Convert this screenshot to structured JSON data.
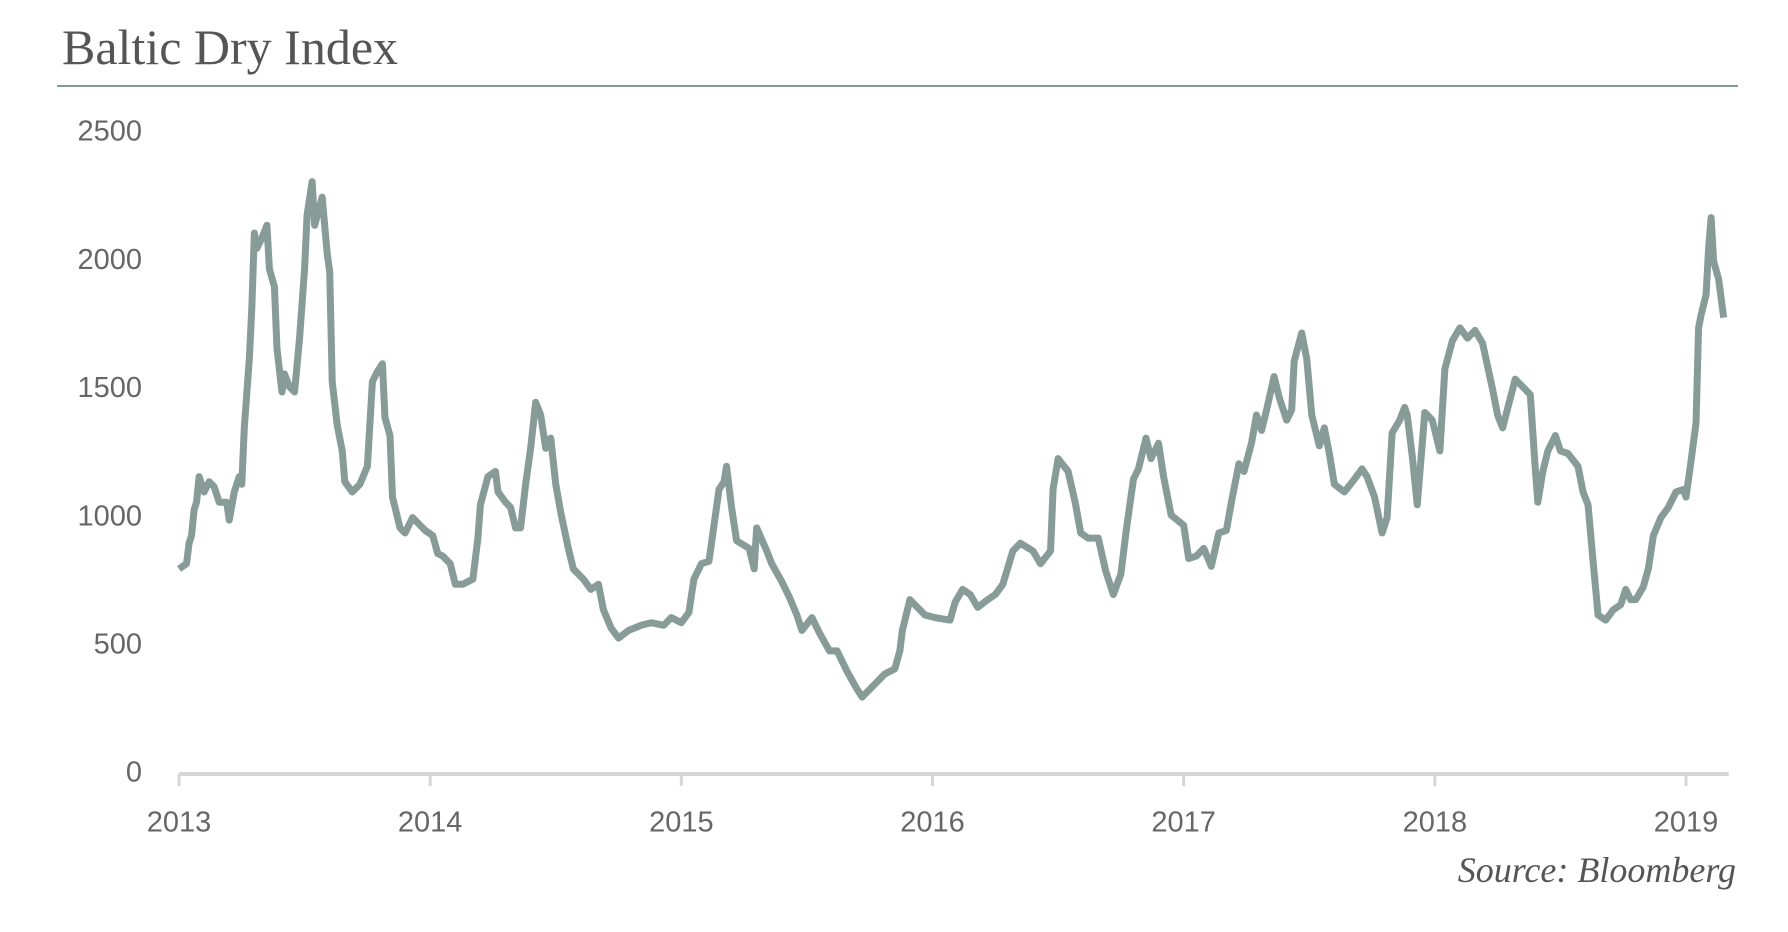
{
  "chart_data": {
    "type": "line",
    "title": "Baltic Dry Index",
    "source": "Source: Bloomberg",
    "color": "#879b97",
    "xlim": [
      2013,
      2019.17
    ],
    "xticks": [
      2013,
      2014,
      2015,
      2016,
      2017,
      2018,
      2019
    ],
    "ylim": [
      0,
      2500
    ],
    "yticks": [
      0,
      500,
      1000,
      1500,
      2000,
      2500
    ],
    "x": [
      2013.0,
      2013.03,
      2013.04,
      2013.05,
      2013.06,
      2013.07,
      2013.08,
      2013.1,
      2013.12,
      2013.14,
      2013.16,
      2013.19,
      2013.2,
      2013.22,
      2013.24,
      2013.25,
      2013.26,
      2013.28,
      2013.29,
      2013.3,
      2013.31,
      2013.33,
      2013.35,
      2013.36,
      2013.38,
      2013.39,
      2013.41,
      2013.42,
      2013.44,
      2013.46,
      2013.48,
      2013.5,
      2013.51,
      2013.53,
      2013.54,
      2013.57,
      2013.59,
      2013.6,
      2013.61,
      2013.63,
      2013.65,
      2013.66,
      2013.69,
      2013.72,
      2013.75,
      2013.77,
      2013.79,
      2013.81,
      2013.82,
      2013.84,
      2013.85,
      2013.88,
      2013.9,
      2013.93,
      2013.95,
      2013.98,
      2014.01,
      2014.03,
      2014.05,
      2014.08,
      2014.1,
      2014.13,
      2014.17,
      2014.19,
      2014.2,
      2014.23,
      2014.26,
      2014.27,
      2014.3,
      2014.32,
      2014.34,
      2014.36,
      2014.38,
      2014.4,
      2014.42,
      2014.44,
      2014.46,
      2014.48,
      2014.5,
      2014.52,
      2014.55,
      2014.57,
      2014.61,
      2014.64,
      2014.67,
      2014.69,
      2014.72,
      2014.75,
      2014.79,
      2014.84,
      2014.88,
      2014.93,
      2014.96,
      2015.0,
      2015.03,
      2015.05,
      2015.08,
      2015.11,
      2015.13,
      2015.15,
      2015.17,
      2015.18,
      2015.2,
      2015.22,
      2015.27,
      2015.29,
      2015.3,
      2015.34,
      2015.36,
      2015.4,
      2015.43,
      2015.46,
      2015.48,
      2015.52,
      2015.55,
      2015.59,
      2015.62,
      2015.66,
      2015.7,
      2015.72,
      2015.76,
      2015.81,
      2015.85,
      2015.87,
      2015.88,
      2015.91,
      2015.94,
      2015.97,
      2016.01,
      2016.07,
      2016.09,
      2016.12,
      2016.15,
      2016.18,
      2016.22,
      2016.25,
      2016.28,
      2016.32,
      2016.35,
      2016.4,
      2016.43,
      2016.47,
      2016.48,
      2016.5,
      2016.54,
      2016.57,
      2016.59,
      2016.62,
      2016.66,
      2016.69,
      2016.72,
      2016.75,
      2016.77,
      2016.8,
      2016.82,
      2016.85,
      2016.87,
      2016.9,
      2016.92,
      2016.95,
      2017.0,
      2017.02,
      2017.05,
      2017.08,
      2017.11,
      2017.14,
      2017.17,
      2017.19,
      2017.22,
      2017.24,
      2017.27,
      2017.29,
      2017.31,
      2017.33,
      2017.36,
      2017.38,
      2017.41,
      2017.43,
      2017.44,
      2017.47,
      2017.49,
      2017.51,
      2017.54,
      2017.56,
      2017.58,
      2017.6,
      2017.64,
      2017.68,
      2017.71,
      2017.73,
      2017.76,
      2017.79,
      2017.81,
      2017.83,
      2017.86,
      2017.88,
      2017.89,
      2017.91,
      2017.93,
      2017.96,
      2017.99,
      2018.02,
      2018.04,
      2018.07,
      2018.1,
      2018.13,
      2018.16,
      2018.19,
      2018.23,
      2018.25,
      2018.27,
      2018.32,
      2018.35,
      2018.38,
      2018.4,
      2018.41,
      2018.43,
      2018.45,
      2018.48,
      2018.5,
      2018.53,
      2018.57,
      2018.59,
      2018.61,
      2018.63,
      2018.65,
      2018.68,
      2018.71,
      2018.74,
      2018.76,
      2018.78,
      2018.8,
      2018.83,
      2018.85,
      2018.87,
      2018.9,
      2018.93,
      2018.96,
      2018.99,
      2019.0,
      2019.02,
      2019.04,
      2019.05,
      2019.06,
      2019.08,
      2019.09,
      2019.1,
      2019.11,
      2019.13,
      2019.15
    ],
    "values": [
      800,
      820,
      900,
      930,
      1030,
      1060,
      1160,
      1100,
      1140,
      1120,
      1060,
      1060,
      990,
      1100,
      1160,
      1130,
      1350,
      1620,
      1820,
      2110,
      2050,
      2090,
      2140,
      1970,
      1900,
      1660,
      1490,
      1560,
      1510,
      1490,
      1700,
      1970,
      2180,
      2310,
      2140,
      2250,
      2030,
      1960,
      1530,
      1360,
      1260,
      1140,
      1100,
      1130,
      1200,
      1530,
      1570,
      1600,
      1390,
      1320,
      1080,
      960,
      940,
      1000,
      980,
      950,
      930,
      860,
      850,
      820,
      740,
      740,
      760,
      920,
      1050,
      1160,
      1180,
      1100,
      1060,
      1040,
      960,
      960,
      1130,
      1270,
      1450,
      1400,
      1270,
      1310,
      1130,
      1020,
      880,
      800,
      760,
      720,
      740,
      640,
      570,
      530,
      560,
      580,
      590,
      580,
      610,
      590,
      630,
      760,
      820,
      830,
      970,
      1110,
      1140,
      1200,
      1040,
      910,
      880,
      800,
      960,
      870,
      820,
      750,
      690,
      620,
      560,
      610,
      550,
      480,
      480,
      400,
      330,
      300,
      340,
      390,
      410,
      480,
      560,
      680,
      650,
      620,
      610,
      600,
      670,
      720,
      700,
      650,
      680,
      700,
      740,
      870,
      900,
      870,
      820,
      870,
      1110,
      1230,
      1180,
      1050,
      940,
      920,
      920,
      790,
      700,
      780,
      940,
      1150,
      1190,
      1310,
      1230,
      1290,
      1160,
      1010,
      970,
      840,
      850,
      880,
      810,
      940,
      950,
      1060,
      1210,
      1180,
      1290,
      1400,
      1340,
      1420,
      1550,
      1470,
      1380,
      1420,
      1610,
      1720,
      1620,
      1400,
      1280,
      1350,
      1250,
      1130,
      1100,
      1150,
      1190,
      1160,
      1080,
      940,
      1000,
      1330,
      1380,
      1430,
      1400,
      1240,
      1050,
      1410,
      1380,
      1260,
      1580,
      1690,
      1740,
      1700,
      1730,
      1680,
      1500,
      1400,
      1350,
      1540,
      1510,
      1480,
      1190,
      1060,
      1180,
      1260,
      1320,
      1260,
      1250,
      1200,
      1100,
      1050,
      830,
      620,
      600,
      640,
      660,
      720,
      680,
      680,
      730,
      800,
      930,
      1000,
      1040,
      1100,
      1110,
      1080,
      1220,
      1370,
      1740,
      1790,
      1870,
      2050,
      2170,
      2000,
      1930,
      1780
    ]
  }
}
